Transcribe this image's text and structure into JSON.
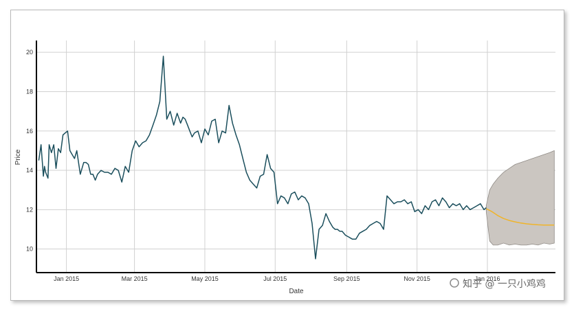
{
  "chart_data": {
    "type": "line",
    "title": "",
    "xlabel": "Date",
    "ylabel": "Price",
    "ylim": [
      8.8,
      20.6
    ],
    "y_ticks": [
      10,
      12,
      14,
      16,
      18,
      20
    ],
    "x_range": [
      "2014-12-06",
      "2016-02-29"
    ],
    "x_ticks": [
      {
        "date": "2015-01-01",
        "label": "Jan 2015"
      },
      {
        "date": "2015-03-01",
        "label": "Mar 2015"
      },
      {
        "date": "2015-05-01",
        "label": "May 2015"
      },
      {
        "date": "2015-07-01",
        "label": "Jul 2015"
      },
      {
        "date": "2015-09-01",
        "label": "Sep 2015"
      },
      {
        "date": "2015-11-01",
        "label": "Nov 2015"
      },
      {
        "date": "2016-01-01",
        "label": "Jan 2016"
      }
    ],
    "grid": true,
    "series": [
      {
        "color": "#1a4e5c",
        "x": [
          "2014-12-08",
          "2014-12-10",
          "2014-12-12",
          "2014-12-13",
          "2014-12-14",
          "2014-12-16",
          "2014-12-17",
          "2014-12-19",
          "2014-12-21",
          "2014-12-23",
          "2014-12-25",
          "2014-12-27",
          "2014-12-29",
          "2014-12-31",
          "2015-01-02",
          "2015-01-04",
          "2015-01-06",
          "2015-01-08",
          "2015-01-10",
          "2015-01-13",
          "2015-01-16",
          "2015-01-18",
          "2015-01-20",
          "2015-01-22",
          "2015-01-24",
          "2015-01-26",
          "2015-01-28",
          "2015-01-31",
          "2015-02-03",
          "2015-02-06",
          "2015-02-09",
          "2015-02-12",
          "2015-02-15",
          "2015-02-18",
          "2015-02-21",
          "2015-02-24",
          "2015-02-27",
          "2015-03-02",
          "2015-03-05",
          "2015-03-08",
          "2015-03-11",
          "2015-03-14",
          "2015-03-17",
          "2015-03-20",
          "2015-03-23",
          "2015-03-26",
          "2015-03-29",
          "2015-04-01",
          "2015-04-04",
          "2015-04-07",
          "2015-04-10",
          "2015-04-12",
          "2015-04-14",
          "2015-04-16",
          "2015-04-18",
          "2015-04-20",
          "2015-04-22",
          "2015-04-25",
          "2015-04-28",
          "2015-05-01",
          "2015-05-04",
          "2015-05-07",
          "2015-05-10",
          "2015-05-13",
          "2015-05-16",
          "2015-05-19",
          "2015-05-22",
          "2015-05-25",
          "2015-05-28",
          "2015-05-31",
          "2015-06-03",
          "2015-06-06",
          "2015-06-09",
          "2015-06-12",
          "2015-06-15",
          "2015-06-18",
          "2015-06-21",
          "2015-06-24",
          "2015-06-27",
          "2015-06-30",
          "2015-07-03",
          "2015-07-06",
          "2015-07-09",
          "2015-07-12",
          "2015-07-15",
          "2015-07-18",
          "2015-07-21",
          "2015-07-24",
          "2015-07-27",
          "2015-07-30",
          "2015-08-02",
          "2015-08-05",
          "2015-08-08",
          "2015-08-11",
          "2015-08-14",
          "2015-08-17",
          "2015-08-20",
          "2015-08-22",
          "2015-08-24",
          "2015-08-26",
          "2015-08-28",
          "2015-08-31",
          "2015-09-03",
          "2015-09-06",
          "2015-09-09",
          "2015-09-12",
          "2015-09-15",
          "2015-09-18",
          "2015-09-21",
          "2015-09-24",
          "2015-09-27",
          "2015-09-30",
          "2015-10-03",
          "2015-10-06",
          "2015-10-09",
          "2015-10-12",
          "2015-10-15",
          "2015-10-18",
          "2015-10-21",
          "2015-10-24",
          "2015-10-27",
          "2015-10-30",
          "2015-11-02",
          "2015-11-05",
          "2015-11-08",
          "2015-11-11",
          "2015-11-14",
          "2015-11-17",
          "2015-11-20",
          "2015-11-23",
          "2015-11-26",
          "2015-11-29",
          "2015-12-02",
          "2015-12-05",
          "2015-12-08",
          "2015-12-11",
          "2015-12-14",
          "2015-12-17",
          "2015-12-20",
          "2015-12-23",
          "2015-12-26",
          "2015-12-29",
          "2015-12-31"
        ],
        "y": [
          14.5,
          15.3,
          13.7,
          14.2,
          13.9,
          13.6,
          15.3,
          14.9,
          15.3,
          14.1,
          15.1,
          14.9,
          15.8,
          15.9,
          16.0,
          15.0,
          14.8,
          14.6,
          15.0,
          13.8,
          14.4,
          14.4,
          14.3,
          13.8,
          13.8,
          13.5,
          13.8,
          14.0,
          13.9,
          13.9,
          13.8,
          14.1,
          14.0,
          13.4,
          14.2,
          13.9,
          15.0,
          15.5,
          15.2,
          15.4,
          15.5,
          15.8,
          16.3,
          16.8,
          17.5,
          19.8,
          16.6,
          17.0,
          16.3,
          16.9,
          16.4,
          16.7,
          16.6,
          16.3,
          16.0,
          15.7,
          15.9,
          16.0,
          15.4,
          16.1,
          15.8,
          16.5,
          16.6,
          15.4,
          16.0,
          15.9,
          17.3,
          16.4,
          15.8,
          15.3,
          14.6,
          13.9,
          13.5,
          13.3,
          13.1,
          13.7,
          13.8,
          14.8,
          14.1,
          13.9,
          12.3,
          12.7,
          12.6,
          12.3,
          12.8,
          12.9,
          12.5,
          12.7,
          12.6,
          12.3,
          11.3,
          9.5,
          11.0,
          11.2,
          11.8,
          11.4,
          11.1,
          11.0,
          11.0,
          10.9,
          10.9,
          10.7,
          10.6,
          10.5,
          10.5,
          10.8,
          10.9,
          11.0,
          11.2,
          11.3,
          11.4,
          11.3,
          11.0,
          12.7,
          12.5,
          12.3,
          12.4,
          12.4,
          12.5,
          12.3,
          12.4,
          11.9,
          12.0,
          11.8,
          12.2,
          12.0,
          12.4,
          12.5,
          12.2,
          12.6,
          12.4,
          12.1,
          12.3,
          12.2,
          12.3,
          12.0,
          12.2,
          12.0,
          12.1,
          12.2,
          12.3,
          12.0,
          12.1
        ]
      },
      {
        "color": "#f0b429",
        "x": [
          "2015-12-31",
          "2016-01-05",
          "2016-01-10",
          "2016-01-15",
          "2016-01-20",
          "2016-01-25",
          "2016-01-30",
          "2016-02-04",
          "2016-02-09",
          "2016-02-14",
          "2016-02-19",
          "2016-02-24",
          "2016-02-28"
        ],
        "y": [
          12.05,
          11.9,
          11.7,
          11.55,
          11.45,
          11.38,
          11.32,
          11.28,
          11.25,
          11.23,
          11.22,
          11.22,
          11.22
        ]
      }
    ],
    "band": {
      "color": "#cbc6c1",
      "x": [
        "2015-12-31",
        "2016-01-03",
        "2016-01-06",
        "2016-01-10",
        "2016-01-15",
        "2016-01-20",
        "2016-01-25",
        "2016-01-30",
        "2016-02-04",
        "2016-02-09",
        "2016-02-14",
        "2016-02-19",
        "2016-02-24",
        "2016-02-28"
      ],
      "upper": [
        12.2,
        13.0,
        13.3,
        13.6,
        13.9,
        14.1,
        14.3,
        14.4,
        14.5,
        14.6,
        14.7,
        14.8,
        14.9,
        15.0
      ],
      "lower": [
        11.9,
        10.4,
        10.2,
        10.2,
        10.3,
        10.2,
        10.25,
        10.2,
        10.2,
        10.25,
        10.2,
        10.3,
        10.25,
        10.3
      ]
    }
  },
  "watermark": "知乎 @ 一只小鸡鸡"
}
